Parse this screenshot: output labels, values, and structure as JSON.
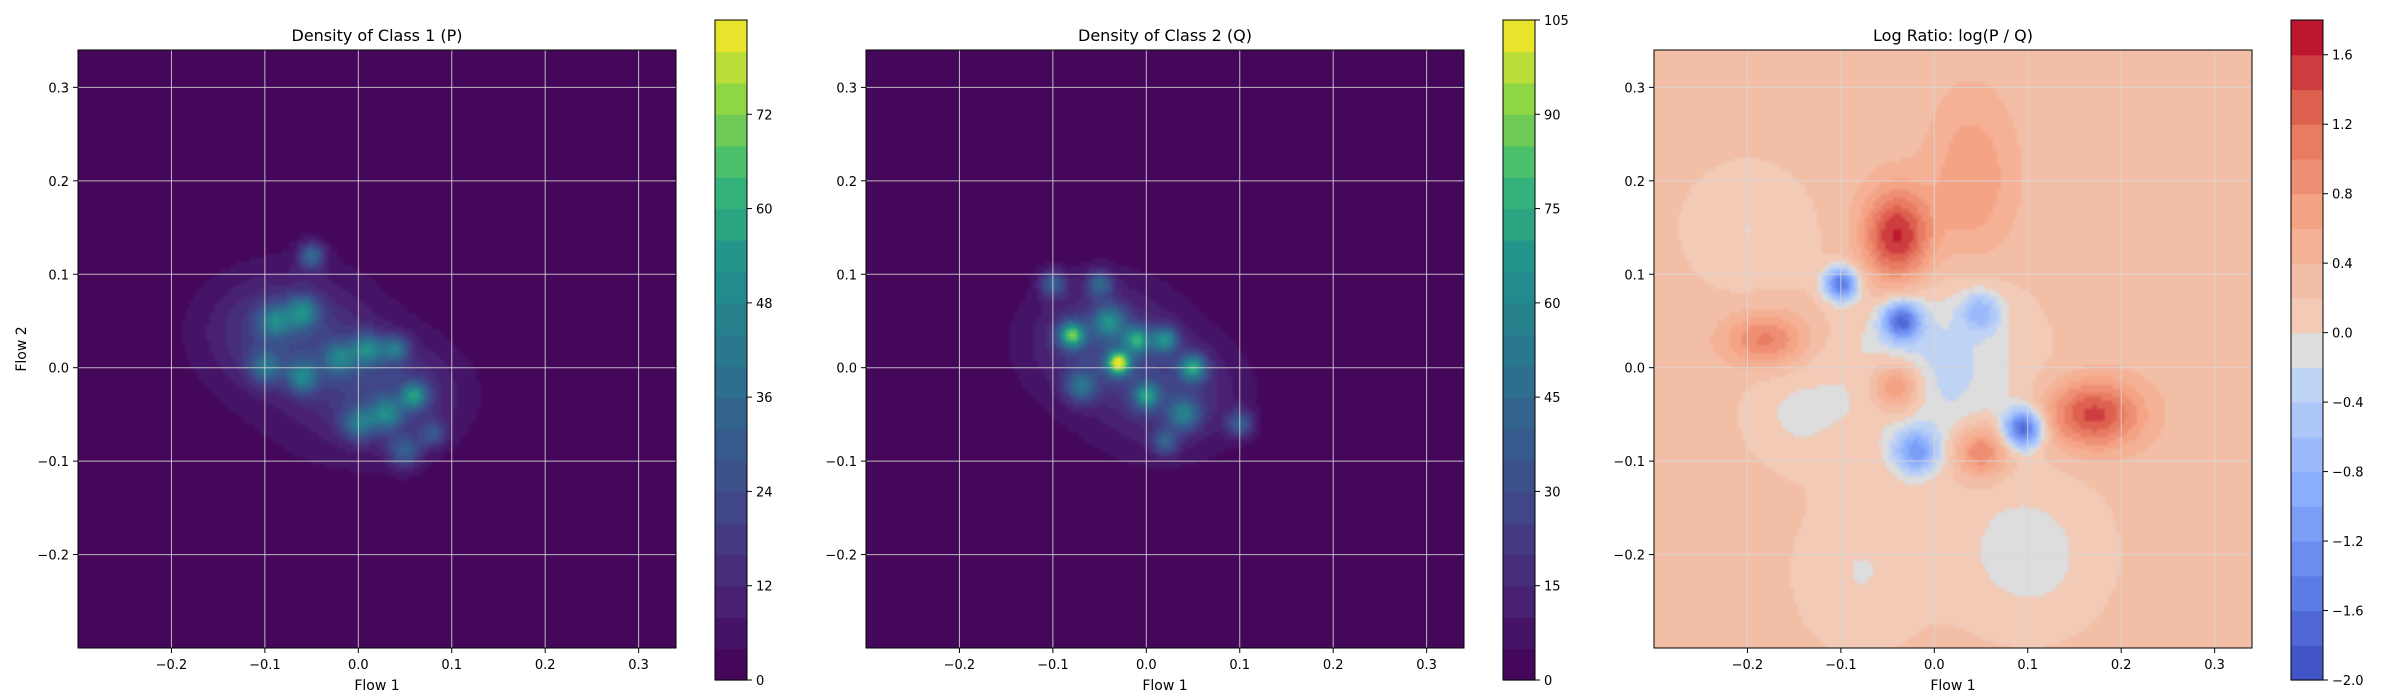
{
  "chart_data": [
    {
      "type": "heatmap",
      "title": "Density of Class 1 (P)",
      "xlabel": "Flow 1",
      "ylabel": "Flow 2",
      "xlim": [
        -0.3,
        0.34
      ],
      "ylim": [
        -0.3,
        0.34
      ],
      "xticks": [
        -0.2,
        -0.1,
        0.0,
        0.1,
        0.2,
        0.3
      ],
      "xtick_labels": [
        "−0.2",
        "−0.1",
        "0.0",
        "0.1",
        "0.2",
        "0.3"
      ],
      "yticks": [
        -0.2,
        -0.1,
        0.0,
        0.1,
        0.2,
        0.3
      ],
      "ytick_labels": [
        "−0.2",
        "−0.1",
        "0.0",
        "0.1",
        "0.2",
        "0.3"
      ],
      "grid": true,
      "colormap": "viridis",
      "colorbar": {
        "range": [
          0,
          84
        ],
        "ticks": [
          0,
          12,
          24,
          36,
          48,
          60,
          72
        ],
        "tick_labels": [
          "0",
          "12",
          "24",
          "36",
          "48",
          "60",
          "72"
        ],
        "levels": 21
      },
      "blobs": [
        {
          "x": -0.08,
          "y": 0.04,
          "sx": 0.055,
          "sy": 0.04,
          "value": 18
        },
        {
          "x": 0.03,
          "y": -0.03,
          "sx": 0.055,
          "sy": 0.04,
          "value": 18
        },
        {
          "x": -0.05,
          "y": 0.0,
          "sx": 0.09,
          "sy": 0.09,
          "value": 5
        },
        {
          "x": -0.09,
          "y": 0.05,
          "sx": 0.012,
          "sy": 0.012,
          "value": 30
        },
        {
          "x": -0.05,
          "y": 0.12,
          "sx": 0.01,
          "sy": 0.01,
          "value": 32
        },
        {
          "x": -0.06,
          "y": 0.06,
          "sx": 0.012,
          "sy": 0.012,
          "value": 35
        },
        {
          "x": -0.1,
          "y": 0.0,
          "sx": 0.012,
          "sy": 0.012,
          "value": 28
        },
        {
          "x": -0.06,
          "y": -0.01,
          "sx": 0.012,
          "sy": 0.012,
          "value": 34
        },
        {
          "x": -0.02,
          "y": 0.01,
          "sx": 0.012,
          "sy": 0.012,
          "value": 30
        },
        {
          "x": 0.01,
          "y": 0.02,
          "sx": 0.012,
          "sy": 0.012,
          "value": 36
        },
        {
          "x": 0.04,
          "y": 0.02,
          "sx": 0.01,
          "sy": 0.01,
          "value": 32
        },
        {
          "x": 0.06,
          "y": -0.03,
          "sx": 0.01,
          "sy": 0.01,
          "value": 40
        },
        {
          "x": 0.03,
          "y": -0.05,
          "sx": 0.012,
          "sy": 0.012,
          "value": 33
        },
        {
          "x": 0.0,
          "y": -0.06,
          "sx": 0.012,
          "sy": 0.012,
          "value": 30
        },
        {
          "x": 0.05,
          "y": -0.09,
          "sx": 0.012,
          "sy": 0.012,
          "value": 26
        },
        {
          "x": 0.08,
          "y": -0.07,
          "sx": 0.01,
          "sy": 0.01,
          "value": 22
        }
      ]
    },
    {
      "type": "heatmap",
      "title": "Density of Class 2 (Q)",
      "xlabel": "Flow 1",
      "ylabel": "",
      "xlim": [
        -0.3,
        0.34
      ],
      "ylim": [
        -0.3,
        0.34
      ],
      "xticks": [
        -0.2,
        -0.1,
        0.0,
        0.1,
        0.2,
        0.3
      ],
      "xtick_labels": [
        "−0.2",
        "−0.1",
        "0.0",
        "0.1",
        "0.2",
        "0.3"
      ],
      "yticks": [
        -0.2,
        -0.1,
        0.0,
        0.1,
        0.2,
        0.3
      ],
      "ytick_labels": [
        "−0.2",
        "−0.1",
        "0.0",
        "0.1",
        "0.2",
        "0.3"
      ],
      "grid": true,
      "colormap": "viridis",
      "colorbar": {
        "range": [
          0,
          105
        ],
        "ticks": [
          0,
          15,
          30,
          45,
          60,
          75,
          90,
          105
        ],
        "tick_labels": [
          "0",
          "15",
          "30",
          "45",
          "60",
          "75",
          "90",
          "105"
        ],
        "levels": 21
      },
      "blobs": [
        {
          "x": -0.05,
          "y": 0.03,
          "sx": 0.05,
          "sy": 0.04,
          "value": 20
        },
        {
          "x": 0.03,
          "y": -0.03,
          "sx": 0.05,
          "sy": 0.04,
          "value": 18
        },
        {
          "x": -0.03,
          "y": 0.0,
          "sx": 0.09,
          "sy": 0.09,
          "value": 5
        },
        {
          "x": -0.1,
          "y": 0.09,
          "sx": 0.01,
          "sy": 0.01,
          "value": 35
        },
        {
          "x": -0.05,
          "y": 0.09,
          "sx": 0.01,
          "sy": 0.01,
          "value": 36
        },
        {
          "x": -0.08,
          "y": 0.035,
          "sx": 0.01,
          "sy": 0.01,
          "value": 70
        },
        {
          "x": -0.04,
          "y": 0.05,
          "sx": 0.012,
          "sy": 0.012,
          "value": 45
        },
        {
          "x": -0.03,
          "y": 0.005,
          "sx": 0.009,
          "sy": 0.009,
          "value": 85
        },
        {
          "x": -0.01,
          "y": 0.03,
          "sx": 0.01,
          "sy": 0.01,
          "value": 55
        },
        {
          "x": 0.02,
          "y": 0.03,
          "sx": 0.01,
          "sy": 0.01,
          "value": 50
        },
        {
          "x": 0.05,
          "y": 0.0,
          "sx": 0.01,
          "sy": 0.01,
          "value": 60
        },
        {
          "x": 0.0,
          "y": -0.03,
          "sx": 0.01,
          "sy": 0.01,
          "value": 50
        },
        {
          "x": 0.04,
          "y": -0.05,
          "sx": 0.012,
          "sy": 0.012,
          "value": 40
        },
        {
          "x": 0.1,
          "y": -0.06,
          "sx": 0.01,
          "sy": 0.01,
          "value": 35
        },
        {
          "x": 0.02,
          "y": -0.08,
          "sx": 0.01,
          "sy": 0.01,
          "value": 30
        },
        {
          "x": -0.07,
          "y": -0.02,
          "sx": 0.012,
          "sy": 0.012,
          "value": 38
        }
      ]
    },
    {
      "type": "heatmap",
      "title": "Log Ratio: log(P / Q)",
      "xlabel": "Flow 1",
      "ylabel": "",
      "xlim": [
        -0.3,
        0.34
      ],
      "ylim": [
        -0.3,
        0.34
      ],
      "xticks": [
        -0.2,
        -0.1,
        0.0,
        0.1,
        0.2,
        0.3
      ],
      "xtick_labels": [
        "−0.2",
        "−0.1",
        "0.0",
        "0.1",
        "0.2",
        "0.3"
      ],
      "yticks": [
        -0.2,
        -0.1,
        0.0,
        0.1,
        0.2,
        0.3
      ],
      "ytick_labels": [
        "−0.2",
        "−0.1",
        "0.0",
        "0.1",
        "0.2",
        "0.3"
      ],
      "grid": true,
      "colormap": "coolwarm",
      "colorbar": {
        "range": [
          -2.0,
          1.8
        ],
        "ticks": [
          -2.0,
          -1.6,
          -1.2,
          -0.8,
          -0.4,
          0.0,
          0.4,
          0.8,
          1.2,
          1.6
        ],
        "tick_labels": [
          "−2.0",
          "−1.6",
          "−1.2",
          "−0.8",
          "−0.4",
          "0.0",
          "0.4",
          "0.8",
          "1.2",
          "1.6"
        ],
        "levels": 19
      },
      "baseline": 0.3,
      "blobs": [
        {
          "x": -0.04,
          "y": 0.14,
          "sx": 0.025,
          "sy": 0.035,
          "value": 1.4
        },
        {
          "x": 0.04,
          "y": 0.2,
          "sx": 0.03,
          "sy": 0.06,
          "value": 0.5
        },
        {
          "x": 0.17,
          "y": -0.05,
          "sx": 0.035,
          "sy": 0.025,
          "value": 1.2
        },
        {
          "x": 0.05,
          "y": -0.09,
          "sx": 0.02,
          "sy": 0.02,
          "value": 0.9
        },
        {
          "x": -0.04,
          "y": -0.02,
          "sx": 0.02,
          "sy": 0.02,
          "value": 0.9
        },
        {
          "x": -0.18,
          "y": 0.03,
          "sx": 0.03,
          "sy": 0.02,
          "value": 0.8
        },
        {
          "x": -0.2,
          "y": 0.15,
          "sx": 0.05,
          "sy": 0.05,
          "value": -0.3
        },
        {
          "x": -0.1,
          "y": 0.09,
          "sx": 0.012,
          "sy": 0.012,
          "value": -1.8
        },
        {
          "x": -0.035,
          "y": 0.05,
          "sx": 0.014,
          "sy": 0.014,
          "value": -1.7
        },
        {
          "x": 0.095,
          "y": -0.065,
          "sx": 0.014,
          "sy": 0.014,
          "value": -1.9
        },
        {
          "x": -0.02,
          "y": -0.09,
          "sx": 0.016,
          "sy": 0.016,
          "value": -1.2
        },
        {
          "x": 0.0,
          "y": 0.0,
          "sx": 0.07,
          "sy": 0.07,
          "value": -0.6
        },
        {
          "x": 0.05,
          "y": 0.06,
          "sx": 0.015,
          "sy": 0.015,
          "value": -0.8
        },
        {
          "x": -0.15,
          "y": -0.05,
          "sx": 0.04,
          "sy": 0.04,
          "value": -0.3
        },
        {
          "x": 0.1,
          "y": -0.2,
          "sx": 0.06,
          "sy": 0.06,
          "value": -0.4
        },
        {
          "x": -0.08,
          "y": -0.22,
          "sx": 0.05,
          "sy": 0.06,
          "value": -0.3
        }
      ]
    }
  ]
}
